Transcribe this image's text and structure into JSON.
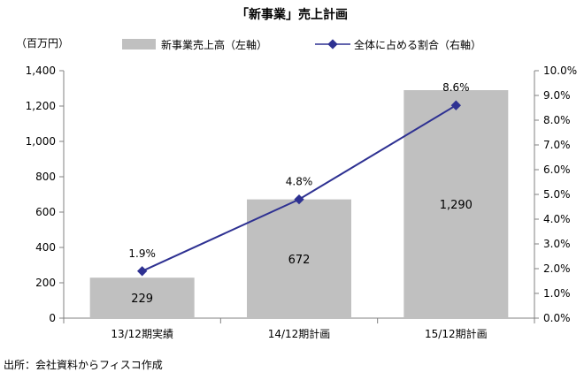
{
  "header": {
    "title": "「新事業」売上計画",
    "unit_label": "（百万円）"
  },
  "legend": {
    "bar_label": "新事業売上高（左軸）",
    "line_label": "全体に占める割合（右軸）"
  },
  "footer": {
    "source": "出所：会社資料からフィスコ作成"
  },
  "colors": {
    "bar": "#c0c0c0",
    "line": "#2e3192",
    "axis": "#808080"
  },
  "chart_data": {
    "type": "bar",
    "categories": [
      "13/12期実績",
      "14/12期計画",
      "15/12期計画"
    ],
    "series": [
      {
        "name": "新事業売上高（左軸）",
        "type": "bar",
        "axis": "left",
        "values": [
          229,
          672,
          1290
        ],
        "data_labels": [
          "229",
          "672",
          "1,290"
        ]
      },
      {
        "name": "全体に占める割合（右軸）",
        "type": "line",
        "axis": "right",
        "values": [
          1.9,
          4.8,
          8.6
        ],
        "data_labels": [
          "1.9%",
          "4.8%",
          "8.6%"
        ]
      }
    ],
    "left_axis": {
      "ylim": [
        0,
        1400
      ],
      "ticks": [
        0,
        200,
        400,
        600,
        800,
        1000,
        1200,
        1400
      ],
      "tick_labels": [
        "0",
        "200",
        "400",
        "600",
        "800",
        "1,000",
        "1,200",
        "1,400"
      ]
    },
    "right_axis": {
      "ylim": [
        0,
        10
      ],
      "ticks": [
        0,
        1,
        2,
        3,
        4,
        5,
        6,
        7,
        8,
        9,
        10
      ],
      "tick_labels": [
        "0.0%",
        "1.0%",
        "2.0%",
        "3.0%",
        "4.0%",
        "5.0%",
        "6.0%",
        "7.0%",
        "8.0%",
        "9.0%",
        "10.0%"
      ]
    },
    "grid": false,
    "legend_position": "top"
  }
}
